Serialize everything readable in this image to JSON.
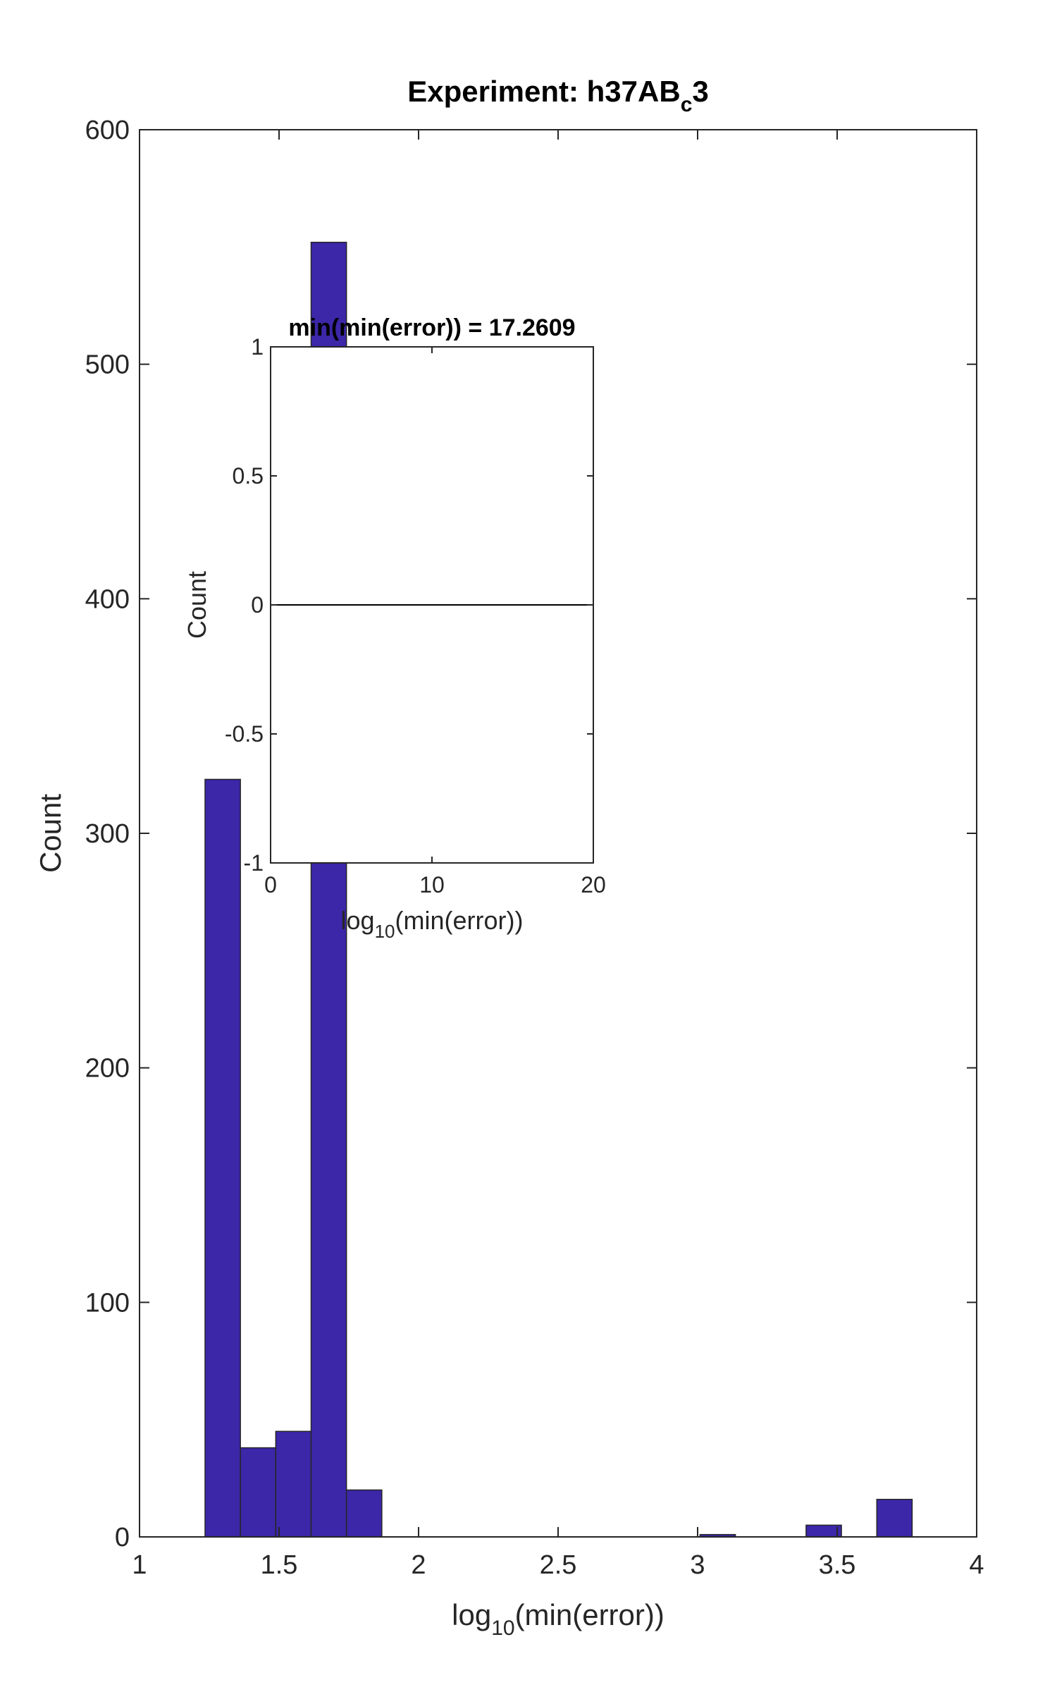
{
  "chart_data": [
    {
      "type": "bar",
      "title": {
        "main": "Experiment: h37AB",
        "sub": "c",
        "tail": "3"
      },
      "xlabel": {
        "pre": "log",
        "sub": "10",
        "post": "(min(error))"
      },
      "ylabel": "Count",
      "xlim": [
        1,
        4
      ],
      "ylim": [
        0,
        600
      ],
      "xticks": [
        1,
        1.5,
        2,
        2.5,
        3,
        3.5,
        4
      ],
      "xtick_labels": [
        "1",
        "1.5",
        "2",
        "2.5",
        "3",
        "3.5",
        "4"
      ],
      "yticks": [
        0,
        100,
        200,
        300,
        400,
        500,
        600
      ],
      "ytick_labels": [
        "0",
        "100",
        "200",
        "300",
        "400",
        "500",
        "600"
      ],
      "grid": false,
      "bar_color": "#3b27a8",
      "bins": [
        {
          "x0": 1.2348,
          "x1": 1.3615,
          "count": 323
        },
        {
          "x0": 1.3615,
          "x1": 1.4882,
          "count": 38
        },
        {
          "x0": 1.4882,
          "x1": 1.6149,
          "count": 45
        },
        {
          "x0": 1.6149,
          "x1": 1.7416,
          "count": 552
        },
        {
          "x0": 1.7416,
          "x1": 1.8683,
          "count": 20
        },
        {
          "x0": 1.8683,
          "x1": 1.995,
          "count": 0
        },
        {
          "x0": 1.995,
          "x1": 2.1217,
          "count": 0
        },
        {
          "x0": 2.1217,
          "x1": 2.2484,
          "count": 0
        },
        {
          "x0": 2.2484,
          "x1": 2.3751,
          "count": 0
        },
        {
          "x0": 2.3751,
          "x1": 2.5018,
          "count": 0
        },
        {
          "x0": 2.5018,
          "x1": 2.6285,
          "count": 0
        },
        {
          "x0": 2.6285,
          "x1": 2.7552,
          "count": 0
        },
        {
          "x0": 2.7552,
          "x1": 2.8819,
          "count": 0
        },
        {
          "x0": 2.8819,
          "x1": 3.0086,
          "count": 0
        },
        {
          "x0": 3.0086,
          "x1": 3.1353,
          "count": 1
        },
        {
          "x0": 3.1353,
          "x1": 3.262,
          "count": 0
        },
        {
          "x0": 3.262,
          "x1": 3.3887,
          "count": 0
        },
        {
          "x0": 3.3887,
          "x1": 3.5154,
          "count": 5
        },
        {
          "x0": 3.5154,
          "x1": 3.6421,
          "count": 0
        },
        {
          "x0": 3.6421,
          "x1": 3.7688,
          "count": 16
        }
      ]
    },
    {
      "type": "line",
      "title": "min(min(error)) = 17.2609",
      "xlabel": {
        "pre": "log",
        "sub": "10",
        "post": "(min(error))"
      },
      "ylabel": "Count",
      "xlim": [
        0,
        20
      ],
      "ylim": [
        -1,
        1
      ],
      "xticks": [
        0,
        10,
        20
      ],
      "xtick_labels": [
        "0",
        "10",
        "20"
      ],
      "yticks": [
        -1,
        -0.5,
        0,
        0.5,
        1
      ],
      "ytick_labels": [
        "-1",
        "-0.5",
        "0",
        "0.5",
        "1"
      ],
      "grid": false,
      "line_color": "#000000",
      "series": [
        {
          "x": [
            0,
            20
          ],
          "values": [
            0,
            0
          ]
        }
      ]
    }
  ]
}
